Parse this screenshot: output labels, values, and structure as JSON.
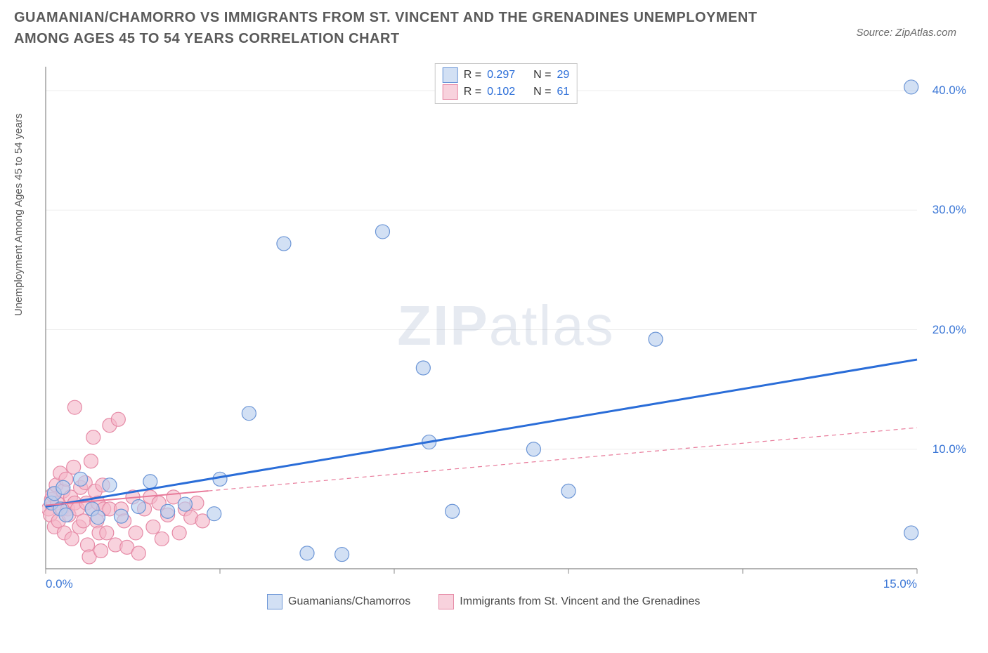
{
  "title": "GUAMANIAN/CHAMORRO VS IMMIGRANTS FROM ST. VINCENT AND THE GRENADINES UNEMPLOYMENT AMONG AGES 45 TO 54 YEARS CORRELATION CHART",
  "source": "Source: ZipAtlas.com",
  "y_axis_label": "Unemployment Among Ages 45 to 54 years",
  "watermark_bold": "ZIP",
  "watermark_light": "atlas",
  "chart": {
    "type": "scatter",
    "background_color": "#ffffff",
    "grid_color": "#ededed",
    "axis_color": "#888888",
    "tick_color": "#888888",
    "xlim": [
      0,
      15
    ],
    "ylim": [
      0,
      42
    ],
    "x_ticks": [
      0,
      3,
      6,
      9,
      12,
      15
    ],
    "x_tick_labels": [
      "0.0%",
      "",
      "",
      "",
      "",
      "15.0%"
    ],
    "y_ticks": [
      10,
      20,
      30,
      40
    ],
    "y_tick_labels": [
      "10.0%",
      "20.0%",
      "30.0%",
      "40.0%"
    ],
    "y_grid": [
      10,
      20,
      30,
      40
    ],
    "series": [
      {
        "name": "Guamanians/Chamorros",
        "label": "Guamanians/Chamorros",
        "fill_color": "#b8cdeea0",
        "stroke_color": "#6b95d6",
        "marker_radius": 10,
        "R": 0.297,
        "N": 29,
        "trend": {
          "x1": 0,
          "y1": 5.2,
          "x2": 15,
          "y2": 17.5,
          "solid_until_x": 15,
          "color": "#2a6dd8",
          "width": 3
        },
        "points": [
          [
            0.1,
            5.5
          ],
          [
            0.15,
            6.3
          ],
          [
            0.25,
            5.0
          ],
          [
            0.3,
            6.8
          ],
          [
            0.35,
            4.5
          ],
          [
            0.6,
            7.5
          ],
          [
            0.8,
            5.0
          ],
          [
            0.9,
            4.3
          ],
          [
            1.1,
            7.0
          ],
          [
            1.3,
            4.4
          ],
          [
            1.6,
            5.2
          ],
          [
            1.8,
            7.3
          ],
          [
            2.1,
            4.8
          ],
          [
            2.4,
            5.4
          ],
          [
            2.9,
            4.6
          ],
          [
            3.0,
            7.5
          ],
          [
            3.5,
            13.0
          ],
          [
            4.1,
            27.2
          ],
          [
            4.5,
            1.3
          ],
          [
            5.1,
            1.2
          ],
          [
            5.8,
            28.2
          ],
          [
            6.5,
            16.8
          ],
          [
            6.6,
            10.6
          ],
          [
            7.0,
            4.8
          ],
          [
            8.4,
            10.0
          ],
          [
            9.0,
            6.5
          ],
          [
            10.5,
            19.2
          ],
          [
            14.9,
            3.0
          ],
          [
            14.9,
            40.3
          ]
        ]
      },
      {
        "name": "Immigrants from St. Vincent and the Grenadines",
        "label": "Immigrants from St. Vincent and the Grenadines",
        "fill_color": "#f4b8c9a0",
        "stroke_color": "#e68aa6",
        "marker_radius": 10,
        "R": 0.102,
        "N": 61,
        "trend": {
          "x1": 0,
          "y1": 5.3,
          "x2": 15,
          "y2": 11.8,
          "solid_until_x": 2.8,
          "color": "#e87a9a",
          "width": 2
        },
        "points": [
          [
            0.05,
            5.0
          ],
          [
            0.08,
            4.5
          ],
          [
            0.1,
            5.8
          ],
          [
            0.12,
            6.2
          ],
          [
            0.15,
            3.5
          ],
          [
            0.18,
            7.0
          ],
          [
            0.2,
            5.5
          ],
          [
            0.22,
            4.0
          ],
          [
            0.25,
            8.0
          ],
          [
            0.28,
            5.0
          ],
          [
            0.3,
            6.5
          ],
          [
            0.32,
            3.0
          ],
          [
            0.35,
            7.5
          ],
          [
            0.38,
            5.0
          ],
          [
            0.4,
            4.5
          ],
          [
            0.43,
            6.0
          ],
          [
            0.45,
            2.5
          ],
          [
            0.48,
            8.5
          ],
          [
            0.5,
            5.5
          ],
          [
            0.5,
            13.5
          ],
          [
            0.55,
            5.0
          ],
          [
            0.58,
            3.5
          ],
          [
            0.6,
            6.8
          ],
          [
            0.65,
            4.0
          ],
          [
            0.68,
            7.2
          ],
          [
            0.7,
            5.5
          ],
          [
            0.72,
            2.0
          ],
          [
            0.75,
            1.0
          ],
          [
            0.78,
            9.0
          ],
          [
            0.8,
            5.0
          ],
          [
            0.82,
            11.0
          ],
          [
            0.85,
            6.5
          ],
          [
            0.88,
            4.0
          ],
          [
            0.9,
            5.5
          ],
          [
            0.92,
            3.0
          ],
          [
            0.95,
            1.5
          ],
          [
            0.98,
            7.0
          ],
          [
            1.0,
            5.0
          ],
          [
            1.05,
            3.0
          ],
          [
            1.1,
            5.0
          ],
          [
            1.1,
            12.0
          ],
          [
            1.2,
            2.0
          ],
          [
            1.25,
            12.5
          ],
          [
            1.3,
            5.0
          ],
          [
            1.35,
            4.0
          ],
          [
            1.4,
            1.8
          ],
          [
            1.5,
            6.0
          ],
          [
            1.55,
            3.0
          ],
          [
            1.6,
            1.3
          ],
          [
            1.7,
            5.0
          ],
          [
            1.8,
            6.0
          ],
          [
            1.85,
            3.5
          ],
          [
            1.95,
            5.5
          ],
          [
            2.0,
            2.5
          ],
          [
            2.1,
            4.5
          ],
          [
            2.2,
            6.0
          ],
          [
            2.3,
            3.0
          ],
          [
            2.4,
            5.0
          ],
          [
            2.5,
            4.3
          ],
          [
            2.6,
            5.5
          ],
          [
            2.7,
            4.0
          ]
        ]
      }
    ]
  },
  "legend_top": {
    "r_label": "R =",
    "n_label": "N ="
  }
}
